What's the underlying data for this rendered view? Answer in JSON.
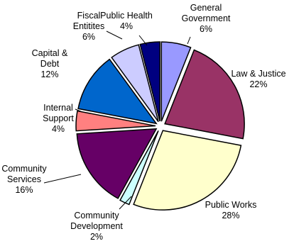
{
  "chart_data": {
    "type": "pie",
    "title": "",
    "slices": [
      {
        "label": "General Government",
        "lines": [
          "General",
          "Government"
        ],
        "pct_label": "6%",
        "value": 6,
        "color": "#9999ff"
      },
      {
        "label": "Law & Justice",
        "lines": [
          "Law & Justice"
        ],
        "pct_label": "22%",
        "value": 22,
        "color": "#993366"
      },
      {
        "label": "Public Works",
        "lines": [
          "Public Works"
        ],
        "pct_label": "28%",
        "value": 28,
        "color": "#ffffcc"
      },
      {
        "label": "Community Development",
        "lines": [
          "Community",
          "Development"
        ],
        "pct_label": "2%",
        "value": 2,
        "color": "#ccffff"
      },
      {
        "label": "Community Services",
        "lines": [
          "Community",
          "Services"
        ],
        "pct_label": "16%",
        "value": 16,
        "color": "#660066"
      },
      {
        "label": "Internal Support",
        "lines": [
          "Internal",
          "Support"
        ],
        "pct_label": "4%",
        "value": 4,
        "color": "#ff8080"
      },
      {
        "label": "Capital & Debt",
        "lines": [
          "Capital &",
          "Debt"
        ],
        "pct_label": "12%",
        "value": 12,
        "color": "#0066cc"
      },
      {
        "label": "Fiscal Entitites",
        "lines": [
          "Fiscal",
          "Entitites"
        ],
        "pct_label": "6%",
        "value": 6,
        "color": "#ccccff"
      },
      {
        "label": "Public Health",
        "lines": [
          "Public Health"
        ],
        "pct_label": "4%",
        "value": 4,
        "color": "#000080"
      }
    ]
  }
}
